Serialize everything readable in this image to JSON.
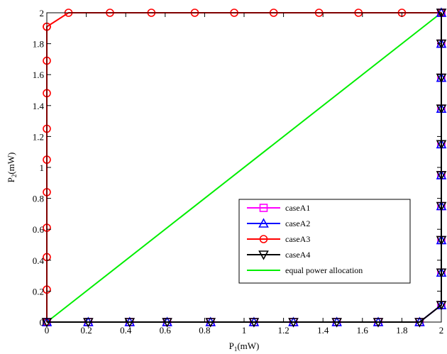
{
  "chart_data": {
    "type": "line",
    "xlabel": {
      "main": "P",
      "sub": "1",
      "unit": "(mW)"
    },
    "ylabel": {
      "main": "P",
      "sub": "2",
      "unit": "(mW)"
    },
    "xlim": [
      0,
      2
    ],
    "ylim": [
      0,
      2
    ],
    "xticks": [
      0,
      0.2,
      0.4,
      0.6,
      0.8,
      1,
      1.2,
      1.4,
      1.6,
      1.8,
      2
    ],
    "yticks": [
      0,
      0.2,
      0.4,
      0.6,
      0.8,
      1,
      1.2,
      1.4,
      1.6,
      1.8,
      2
    ],
    "xtick_labels": [
      "0",
      "0.2",
      "0.4",
      "0.6",
      "0.8",
      "1",
      "1.2",
      "1.4",
      "1.6",
      "1.8",
      "2"
    ],
    "ytick_labels": [
      "0",
      "0.2",
      "0.4",
      "0.6",
      "0.8",
      "1",
      "1.2",
      "1.4",
      "1.6",
      "1.8",
      "2"
    ],
    "grid": false,
    "legend_position": "lower-right",
    "series": [
      {
        "name": "caseA1",
        "color": "#ff00ff",
        "marker": "square",
        "x": [
          0,
          0.21,
          0.42,
          0.61,
          0.83,
          1.05,
          1.25,
          1.47,
          1.68,
          1.89,
          2,
          2,
          2,
          2,
          2,
          2,
          2,
          2,
          2,
          2
        ],
        "y": [
          0,
          0,
          0,
          0,
          0,
          0,
          0,
          0,
          0,
          0,
          0.11,
          0.32,
          0.53,
          0.75,
          0.95,
          1.15,
          1.38,
          1.58,
          1.8,
          2
        ]
      },
      {
        "name": "caseA2",
        "color": "#0000ff",
        "marker": "triangle-up",
        "x": [
          0,
          0.21,
          0.42,
          0.61,
          0.83,
          1.05,
          1.25,
          1.47,
          1.68,
          1.89,
          2,
          2,
          2,
          2,
          2,
          2,
          2,
          2,
          2,
          2
        ],
        "y": [
          0,
          0,
          0,
          0,
          0,
          0,
          0,
          0,
          0,
          0,
          0.11,
          0.32,
          0.53,
          0.75,
          0.95,
          1.15,
          1.38,
          1.58,
          1.8,
          2
        ]
      },
      {
        "name": "caseA3",
        "color": "#ff0000",
        "marker": "circle",
        "x": [
          0,
          0,
          0,
          0,
          0,
          0,
          0,
          0,
          0,
          0,
          0,
          0.11,
          0.32,
          0.53,
          0.75,
          0.95,
          1.15,
          1.38,
          1.58,
          1.8,
          2
        ],
        "y": [
          0,
          0.21,
          0.42,
          0.61,
          0.84,
          1.05,
          1.25,
          1.48,
          1.69,
          1.91,
          1.91,
          2,
          2,
          2,
          2,
          2,
          2,
          2,
          2,
          2,
          2
        ]
      },
      {
        "name": "caseA4",
        "color": "#000000",
        "marker": "triangle-down",
        "x": [
          0,
          0.21,
          0.42,
          0.61,
          0.83,
          1.05,
          1.25,
          1.47,
          1.68,
          1.89,
          2,
          2,
          2,
          2,
          2,
          2,
          2,
          2,
          2,
          2
        ],
        "y": [
          0,
          0,
          0,
          0,
          0,
          0,
          0,
          0,
          0,
          0,
          0.11,
          0.32,
          0.53,
          0.75,
          0.95,
          1.15,
          1.38,
          1.58,
          1.8,
          2
        ]
      },
      {
        "name": "equal power allocation",
        "color": "#00ee00",
        "marker": "none",
        "x": [
          0,
          2
        ],
        "y": [
          0,
          2
        ]
      }
    ]
  }
}
